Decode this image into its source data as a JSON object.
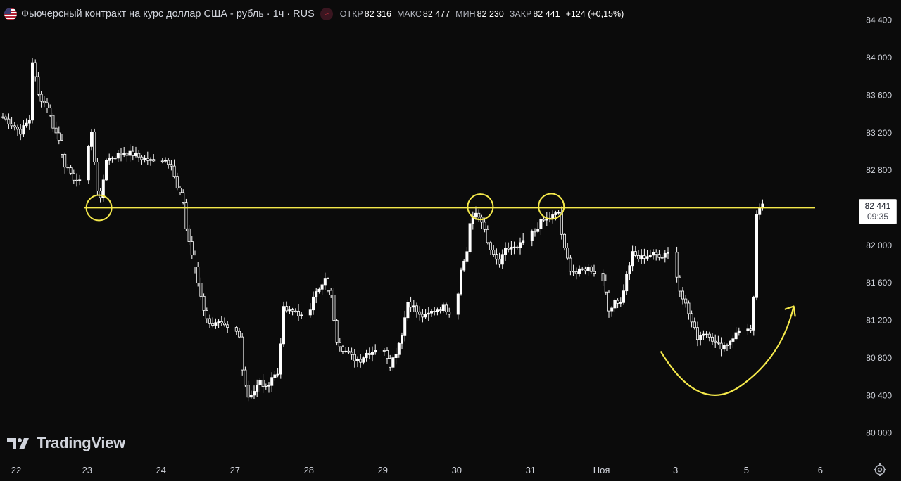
{
  "header": {
    "title": "Фьючерсный контракт на курс доллар США - рубль · 1ч · RUS",
    "flag_icon": "us-flag-icon",
    "indicator_icon": "wave-icon",
    "open_label": "ОТКР",
    "open_value": "82 316",
    "high_label": "МАКС",
    "high_value": "82 477",
    "low_label": "МИН",
    "low_value": "82 230",
    "close_label": "ЗАКР",
    "close_value": "82 441",
    "change": "+124 (+0,15%)"
  },
  "brand": {
    "logo_text": "TradingView",
    "logo_icon": "tradingview-logo-icon"
  },
  "price_tag": {
    "price": "82 441",
    "countdown": "09:35"
  },
  "settings_icon": "gear-icon",
  "colors": {
    "background": "#0b0b0b",
    "candle": "#ffffff",
    "annotation": "#f5e94b",
    "axis_text": "#d1d4dc"
  },
  "chart_data": {
    "type": "candlestick",
    "title": "Фьючерсный контракт на курс доллар США - рубль · 1ч · RUS",
    "y_ticks": [
      84400,
      84000,
      83600,
      83200,
      82800,
      82400,
      82000,
      81600,
      81200,
      80800,
      80400,
      80000
    ],
    "y_tick_labels": [
      "84 400",
      "84 000",
      "83 600",
      "83 200",
      "82 800",
      "82 400",
      "82 000",
      "81 600",
      "81 200",
      "80 800",
      "80 400",
      "80 000"
    ],
    "ylim": [
      79930,
      84480
    ],
    "x_tick_labels": [
      "22",
      "23",
      "24",
      "27",
      "28",
      "29",
      "30",
      "31",
      "Ноя",
      "3",
      "5",
      "6"
    ],
    "n_slots": 263,
    "x_tick_slots": [
      5,
      29,
      54,
      79,
      104,
      129,
      154,
      179,
      203,
      228,
      252,
      277
    ],
    "horizontal_level": 82400,
    "last_price": 82441,
    "circled_touches": [
      {
        "slot": 33,
        "price": 82400
      },
      {
        "slot": 162,
        "price": 82410
      },
      {
        "slot": 186,
        "price": 82415
      }
    ],
    "path": [
      [
        0,
        83370
      ],
      [
        3,
        83290
      ],
      [
        6,
        83210
      ],
      [
        9,
        83340
      ],
      [
        10,
        83960
      ],
      [
        12,
        83600
      ],
      [
        15,
        83480
      ],
      [
        17,
        83270
      ],
      [
        19,
        83120
      ],
      [
        21,
        82860
      ],
      [
        23,
        82740
      ],
      [
        26,
        82670
      ],
      [
        28,
        82900
      ],
      [
        30,
        83200
      ],
      [
        32,
        82600
      ],
      [
        33,
        82480
      ],
      [
        35,
        82920
      ],
      [
        38,
        82950
      ],
      [
        41,
        82990
      ],
      [
        44,
        82970
      ],
      [
        47,
        82930
      ],
      [
        50,
        82900
      ],
      [
        53,
        82870
      ],
      [
        55,
        82930
      ],
      [
        57,
        82850
      ],
      [
        59,
        82600
      ],
      [
        61,
        82470
      ],
      [
        62,
        82180
      ],
      [
        64,
        81900
      ],
      [
        66,
        81600
      ],
      [
        68,
        81320
      ],
      [
        70,
        81150
      ],
      [
        72,
        81190
      ],
      [
        74,
        81150
      ],
      [
        76,
        81100
      ],
      [
        78,
        81130
      ],
      [
        80,
        81020
      ],
      [
        81,
        80700
      ],
      [
        82,
        80520
      ],
      [
        83,
        80390
      ],
      [
        85,
        80450
      ],
      [
        87,
        80550
      ],
      [
        89,
        80470
      ],
      [
        91,
        80600
      ],
      [
        93,
        80630
      ],
      [
        95,
        81320
      ],
      [
        97,
        81290
      ],
      [
        99,
        81300
      ],
      [
        101,
        81240
      ],
      [
        103,
        81210
      ],
      [
        105,
        81470
      ],
      [
        107,
        81520
      ],
      [
        109,
        81620
      ],
      [
        111,
        81450
      ],
      [
        113,
        80990
      ],
      [
        115,
        80900
      ],
      [
        117,
        80840
      ],
      [
        119,
        80790
      ],
      [
        121,
        80780
      ],
      [
        123,
        80850
      ],
      [
        125,
        80870
      ],
      [
        127,
        80920
      ],
      [
        129,
        80900
      ],
      [
        131,
        80730
      ],
      [
        133,
        80860
      ],
      [
        135,
        81060
      ],
      [
        137,
        81400
      ],
      [
        139,
        81340
      ],
      [
        141,
        81250
      ],
      [
        143,
        81240
      ],
      [
        145,
        81290
      ],
      [
        147,
        81320
      ],
      [
        149,
        81340
      ],
      [
        151,
        81290
      ],
      [
        153,
        81290
      ],
      [
        155,
        81730
      ],
      [
        157,
        81940
      ],
      [
        158,
        82230
      ],
      [
        160,
        82340
      ],
      [
        162,
        82270
      ],
      [
        164,
        82020
      ],
      [
        166,
        81880
      ],
      [
        168,
        81800
      ],
      [
        170,
        81950
      ],
      [
        172,
        81980
      ],
      [
        174,
        81960
      ],
      [
        176,
        82050
      ],
      [
        178,
        82110
      ],
      [
        180,
        82150
      ],
      [
        182,
        82250
      ],
      [
        184,
        82280
      ],
      [
        186,
        82310
      ],
      [
        188,
        82350
      ],
      [
        189,
        82120
      ],
      [
        190,
        81950
      ],
      [
        192,
        81750
      ],
      [
        194,
        81700
      ],
      [
        196,
        81740
      ],
      [
        198,
        81760
      ],
      [
        200,
        81720
      ],
      [
        202,
        81730
      ],
      [
        203,
        81650
      ],
      [
        205,
        81300
      ],
      [
        207,
        81420
      ],
      [
        209,
        81380
      ],
      [
        211,
        81680
      ],
      [
        213,
        81910
      ],
      [
        215,
        81860
      ],
      [
        217,
        81880
      ],
      [
        219,
        81900
      ],
      [
        221,
        81900
      ],
      [
        223,
        81890
      ],
      [
        225,
        81940
      ],
      [
        227,
        81800
      ],
      [
        229,
        81540
      ],
      [
        231,
        81370
      ],
      [
        233,
        81180
      ],
      [
        235,
        81020
      ],
      [
        237,
        81070
      ],
      [
        239,
        81050
      ],
      [
        241,
        80950
      ],
      [
        243,
        80920
      ],
      [
        245,
        80950
      ],
      [
        247,
        81020
      ],
      [
        249,
        81090
      ],
      [
        251,
        81100
      ],
      [
        253,
        81070
      ],
      [
        254,
        81450
      ],
      [
        255,
        82300
      ],
      [
        256,
        82380
      ],
      [
        257,
        82441
      ]
    ],
    "y_axis_side": "right",
    "grid": false
  }
}
